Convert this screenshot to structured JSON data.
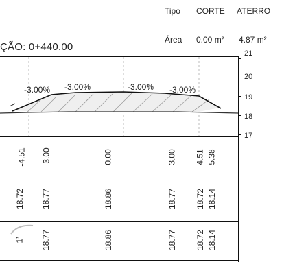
{
  "header": {
    "tipo_label": "Tipo",
    "corte_label": "CORTE",
    "aterro_label": "ATERRO",
    "area_label": "Área",
    "corte_area": "0.00 m²",
    "aterro_area": "4.87 m²"
  },
  "section": {
    "title": "ÇÃO: 0+440.00"
  },
  "axis": {
    "ticks": [
      "21",
      "20",
      "19",
      "18",
      "17"
    ]
  },
  "slopes": [
    "-3.00%",
    "-3.00%",
    "-3.00%",
    "-3.00%"
  ],
  "rows": {
    "offsets": [
      "-4.51",
      "-3.00",
      "0.00",
      "3.00",
      "4.51",
      "5.38"
    ],
    "elev_a": [
      "18.72",
      "18.77",
      "18.86",
      "18.77",
      "18.72",
      "18.14"
    ],
    "elev_b": [
      "1ʼ",
      "18.77",
      "18.86",
      "18.77",
      "18.72",
      "18.14"
    ]
  }
}
